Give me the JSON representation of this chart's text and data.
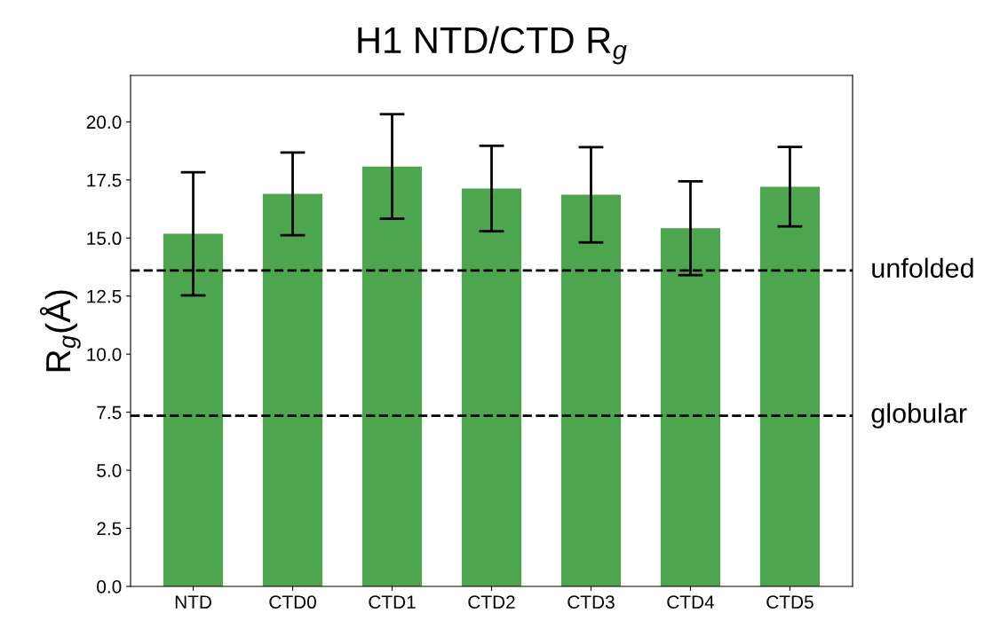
{
  "chart_data": {
    "type": "bar",
    "title": "H1 NTD/CTD R$_{g}$",
    "ylabel": "R$_{g}$(Å)",
    "categories": [
      "NTD",
      "CTD0",
      "CTD1",
      "CTD2",
      "CTD3",
      "CTD4",
      "CTD5"
    ],
    "values": [
      15.18,
      16.9,
      18.08,
      17.13,
      16.86,
      15.42,
      17.21
    ],
    "errors": [
      2.65,
      1.78,
      2.25,
      1.84,
      2.05,
      2.02,
      1.71
    ],
    "color": "#4da64d",
    "ylim": [
      0,
      22
    ],
    "yticks": [
      {
        "value": 0,
        "label": "0.0"
      },
      2.5,
      {
        "value": 5,
        "label": "5.0"
      },
      7.5,
      {
        "value": 10,
        "label": "10.0"
      },
      12.5,
      {
        "value": 15,
        "label": "15.0"
      },
      17.5,
      {
        "value": 20,
        "label": "20.0"
      }
    ],
    "ref_lines": [
      {
        "axis": "y",
        "value": 13.6,
        "label": "unfolded",
        "color": "#000000",
        "line_style": "dashed"
      },
      {
        "axis": "y",
        "value": 7.35,
        "label": "globular",
        "color": "#000000",
        "line_style": "dashed"
      }
    ],
    "grid": false,
    "legend": false
  }
}
